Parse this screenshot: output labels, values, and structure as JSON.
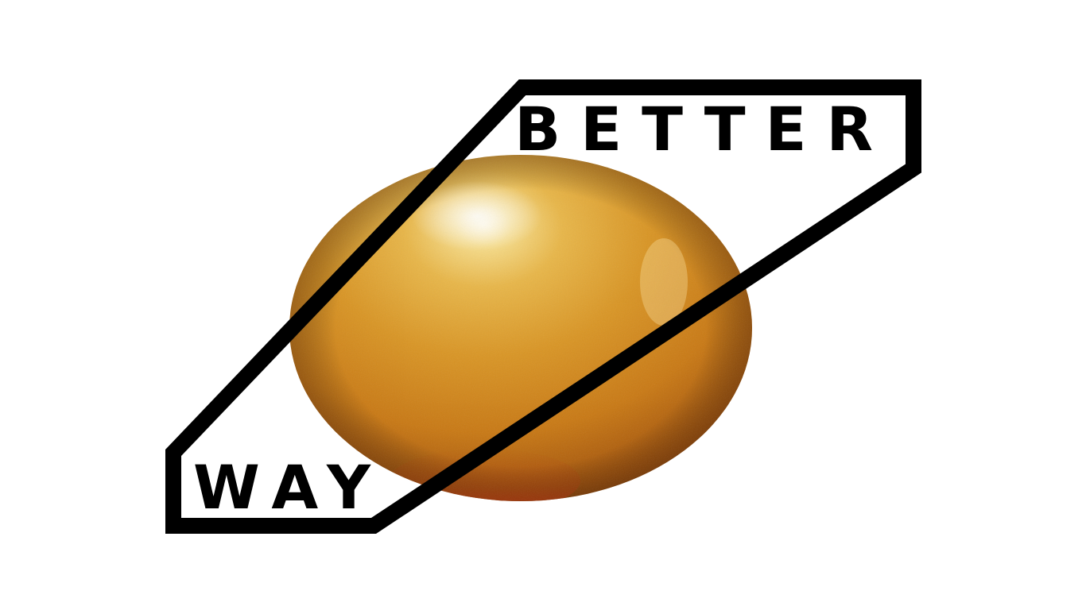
{
  "logo": {
    "word_top": "BETTER",
    "word_bottom": "WAY"
  },
  "colors": {
    "background": "#ffffff",
    "frame": "#000000",
    "egg_gold": "#d8921c",
    "egg_highlight": "#fff4d0",
    "egg_shadow": "#7a3d05",
    "egg_base_red": "#b2300c"
  },
  "icons": {
    "egg": "golden-egg-icon",
    "frame": "parallelogram-frame-icon"
  }
}
